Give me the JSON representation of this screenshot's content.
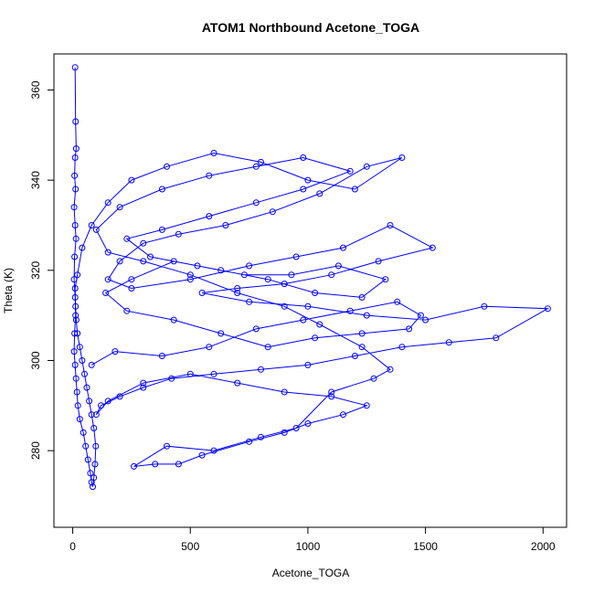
{
  "chart_data": {
    "type": "scatter",
    "title": "ATOM1 Northbound Acetone_TOGA",
    "xlabel": "Acetone_TOGA",
    "ylabel": "Theta (K)",
    "xlim": [
      -80,
      2100
    ],
    "ylim": [
      263,
      368
    ],
    "x_ticks": [
      0,
      500,
      1000,
      1500,
      2000
    ],
    "y_ticks": [
      280,
      300,
      320,
      340,
      360
    ],
    "grid": false,
    "legend": "none",
    "point_style": "open-circle",
    "connected": true,
    "series": [
      {
        "color": "#0000ff",
        "points": [
          [
            10,
            365
          ],
          [
            12,
            353
          ],
          [
            15,
            347
          ],
          [
            10,
            345
          ],
          [
            8,
            341
          ],
          [
            12,
            338
          ],
          [
            6,
            334
          ],
          [
            10,
            330
          ],
          [
            14,
            327
          ],
          [
            8,
            323
          ],
          [
            6,
            318
          ],
          [
            10,
            314
          ],
          [
            12,
            310
          ],
          [
            8,
            306
          ],
          [
            6,
            302
          ],
          [
            10,
            299
          ],
          [
            14,
            296
          ],
          [
            18,
            293
          ],
          [
            22,
            290
          ],
          [
            30,
            287
          ],
          [
            45,
            284
          ],
          [
            55,
            281
          ],
          [
            65,
            278
          ],
          [
            75,
            275
          ],
          [
            80,
            273
          ],
          [
            85,
            272
          ],
          [
            90,
            274
          ],
          [
            95,
            277
          ],
          [
            98,
            281
          ],
          [
            90,
            285
          ],
          [
            80,
            288
          ],
          [
            70,
            291
          ],
          [
            60,
            294
          ],
          [
            50,
            297
          ],
          [
            40,
            300
          ],
          [
            30,
            303
          ],
          [
            20,
            306
          ],
          [
            15,
            309
          ],
          [
            12,
            312
          ],
          [
            10,
            316
          ],
          [
            20,
            319
          ],
          [
            40,
            325
          ],
          [
            80,
            330
          ],
          [
            150,
            335
          ],
          [
            250,
            340
          ],
          [
            400,
            343
          ],
          [
            600,
            346
          ],
          [
            800,
            344
          ],
          [
            1000,
            340
          ],
          [
            1200,
            338
          ],
          [
            1400,
            345
          ],
          [
            1250,
            343
          ],
          [
            1050,
            337
          ],
          [
            850,
            333
          ],
          [
            650,
            330
          ],
          [
            450,
            328
          ],
          [
            300,
            326
          ],
          [
            200,
            322
          ],
          [
            150,
            318
          ],
          [
            250,
            316
          ],
          [
            500,
            318
          ],
          [
            750,
            321
          ],
          [
            950,
            323
          ],
          [
            1150,
            325
          ],
          [
            1350,
            330
          ],
          [
            1530,
            325
          ],
          [
            1300,
            322
          ],
          [
            1100,
            319
          ],
          [
            900,
            317
          ],
          [
            700,
            316
          ],
          [
            550,
            315
          ],
          [
            750,
            313
          ],
          [
            1000,
            312
          ],
          [
            1250,
            310
          ],
          [
            1500,
            309
          ],
          [
            1750,
            312
          ],
          [
            2020,
            311.5
          ],
          [
            1800,
            305
          ],
          [
            1600,
            304
          ],
          [
            1400,
            303
          ],
          [
            1200,
            301
          ],
          [
            1000,
            299
          ],
          [
            800,
            298
          ],
          [
            600,
            297
          ],
          [
            420,
            296
          ],
          [
            300,
            294
          ],
          [
            200,
            292
          ],
          [
            120,
            290
          ],
          [
            100,
            288
          ],
          [
            150,
            291
          ],
          [
            300,
            295
          ],
          [
            500,
            297
          ],
          [
            700,
            295
          ],
          [
            900,
            293
          ],
          [
            1100,
            292
          ],
          [
            1250,
            290
          ],
          [
            1150,
            288
          ],
          [
            1000,
            286
          ],
          [
            900,
            284
          ],
          [
            750,
            282
          ],
          [
            550,
            279
          ],
          [
            450,
            277
          ],
          [
            350,
            277
          ],
          [
            260,
            276.5
          ],
          [
            400,
            281
          ],
          [
            600,
            280
          ],
          [
            800,
            283
          ],
          [
            950,
            285
          ],
          [
            1100,
            293
          ],
          [
            1280,
            296
          ],
          [
            1350,
            298
          ],
          [
            1230,
            303
          ],
          [
            1050,
            308
          ],
          [
            900,
            312
          ],
          [
            700,
            315
          ],
          [
            500,
            319
          ],
          [
            300,
            322
          ],
          [
            150,
            324
          ],
          [
            100,
            329
          ],
          [
            200,
            334
          ],
          [
            380,
            338
          ],
          [
            580,
            341
          ],
          [
            780,
            343
          ],
          [
            980,
            345
          ],
          [
            1180,
            342
          ],
          [
            980,
            338
          ],
          [
            780,
            335
          ],
          [
            580,
            332
          ],
          [
            380,
            329
          ],
          [
            230,
            327
          ],
          [
            330,
            323
          ],
          [
            530,
            321
          ],
          [
            730,
            319
          ],
          [
            930,
            319
          ],
          [
            1130,
            321
          ],
          [
            1330,
            318
          ],
          [
            1230,
            314
          ],
          [
            1030,
            315
          ],
          [
            830,
            318
          ],
          [
            630,
            320
          ],
          [
            430,
            322
          ],
          [
            250,
            318
          ],
          [
            140,
            315
          ],
          [
            230,
            311
          ],
          [
            430,
            309
          ],
          [
            630,
            306
          ],
          [
            830,
            303
          ],
          [
            1030,
            305
          ],
          [
            1230,
            306
          ],
          [
            1430,
            307
          ],
          [
            1480,
            310
          ],
          [
            1380,
            313
          ],
          [
            1180,
            311
          ],
          [
            980,
            309
          ],
          [
            780,
            307
          ],
          [
            580,
            303
          ],
          [
            380,
            301
          ],
          [
            180,
            302
          ],
          [
            80,
            299
          ]
        ]
      }
    ]
  }
}
